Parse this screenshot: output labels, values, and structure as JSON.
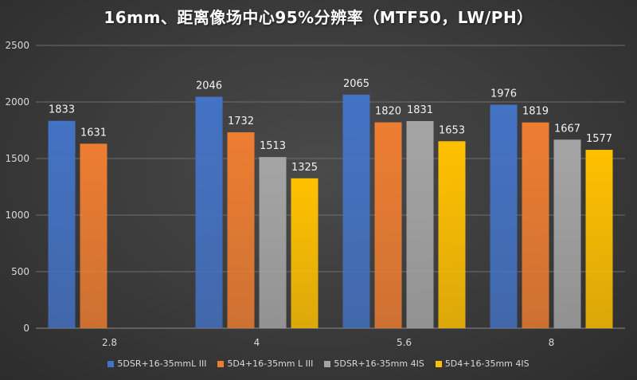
{
  "chart_data": {
    "type": "bar",
    "title": "16mm、距离像场中心95%分辨率（MTF50，LW/PH）",
    "xlabel": "",
    "ylabel": "",
    "ylim": [
      0,
      2500
    ],
    "yticks": [
      0,
      500,
      1000,
      1500,
      2000,
      2500
    ],
    "grid": true,
    "legend_position": "bottom",
    "categories": [
      "2.8",
      "4",
      "5.6",
      "8"
    ],
    "series": [
      {
        "name": "5DSR+16-35mmL III",
        "color": "#4472c4",
        "values": [
          1833,
          2046,
          2065,
          1976
        ]
      },
      {
        "name": "5D4+16-35mm L III",
        "color": "#ed7d31",
        "values": [
          1631,
          1732,
          1820,
          1819
        ]
      },
      {
        "name": "5DSR+16-35mm 4IS",
        "color": "#a5a5a5",
        "values": [
          null,
          1513,
          1831,
          1667
        ]
      },
      {
        "name": "5D4+16-35mm 4IS",
        "color": "#ffc000",
        "values": [
          null,
          1325,
          1653,
          1577
        ]
      }
    ]
  }
}
